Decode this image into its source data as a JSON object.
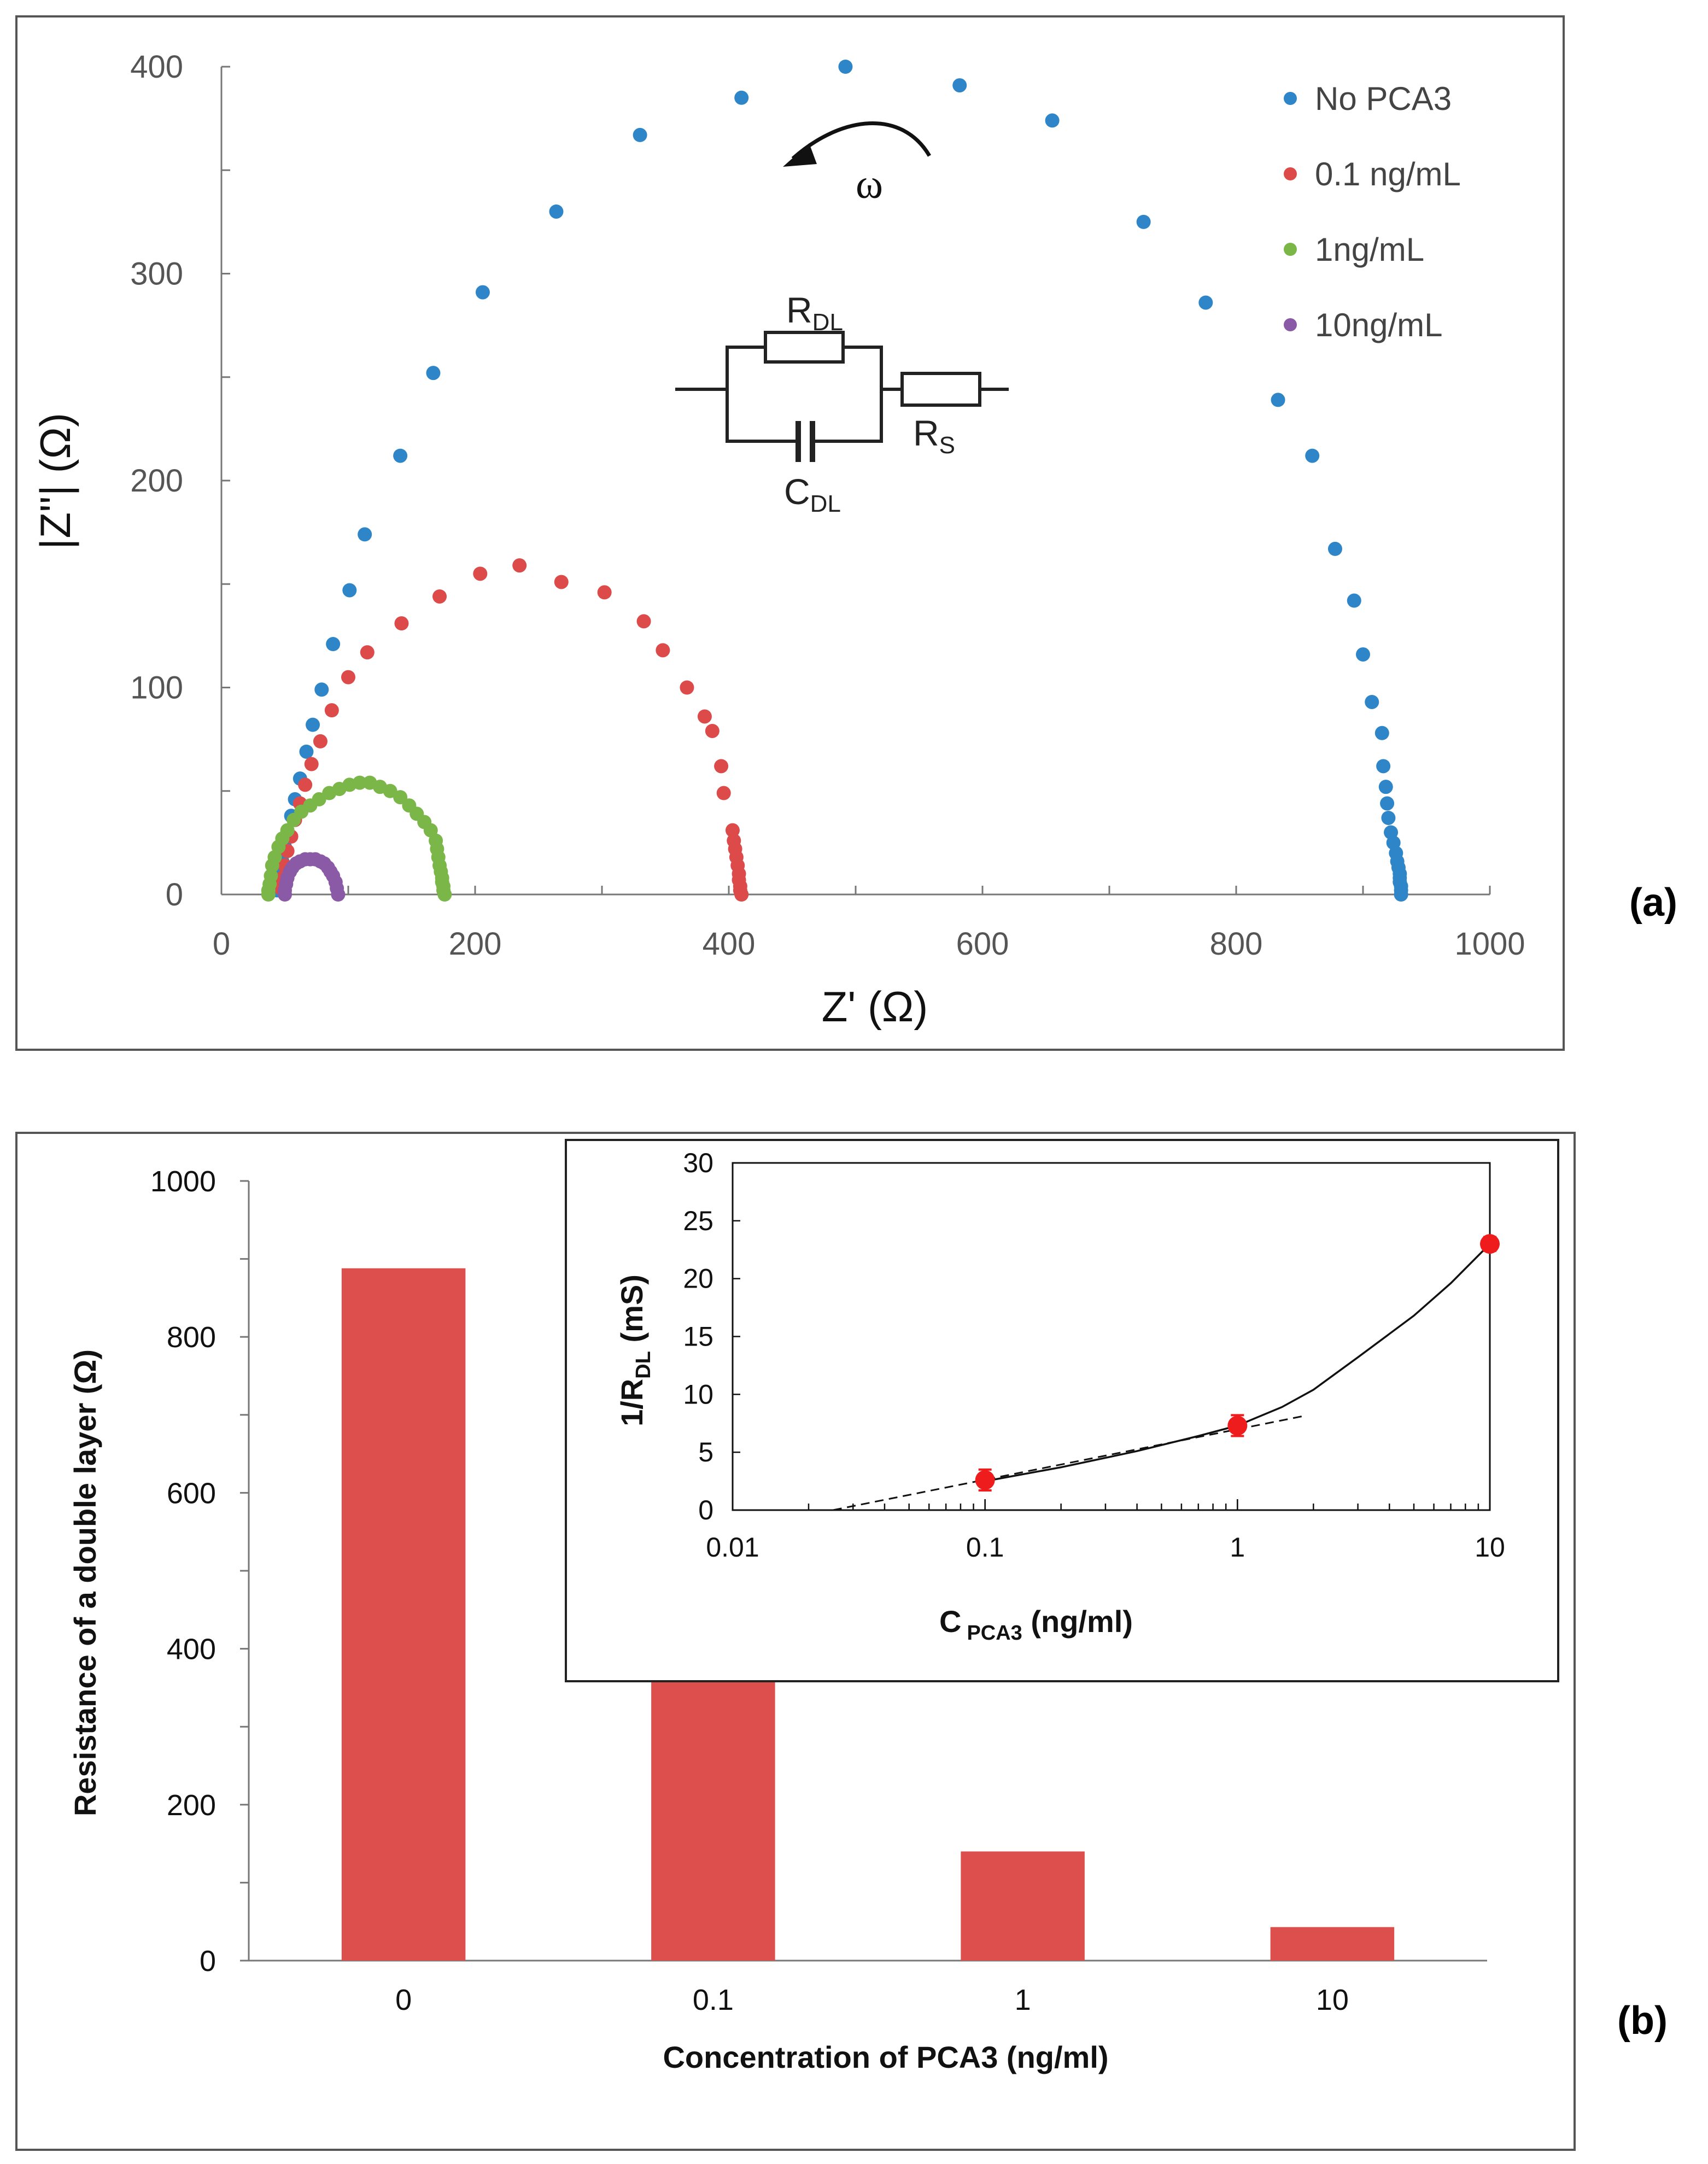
{
  "chart_data": [
    {
      "id": "a",
      "type": "scatter",
      "panel_label": "(a)",
      "xlabel": "Z' (Ω)",
      "ylabel": "|Z''| (Ω)",
      "xlim": [
        0,
        1000
      ],
      "ylim": [
        0,
        400
      ],
      "xticks": [
        "0",
        "200",
        "400",
        "600",
        "800",
        "1000"
      ],
      "yticks": [
        "0",
        "100",
        "200",
        "300",
        "400"
      ],
      "grid": false,
      "legend_position": "top-right",
      "colors": {
        "No PCA3": "#2e86c9",
        "0.1 ng/mL": "#dc4a4a",
        "1ng/mL": "#7ab648",
        "10ng/mL": "#8a5aa7"
      },
      "annotation": "ω",
      "circuit": {
        "r_dl": "R",
        "r_dl_sub": "DL",
        "c_dl": "C",
        "c_dl_sub": "DL",
        "r_s": "R",
        "r_s_sub": "S"
      },
      "series": [
        {
          "name": "No PCA3",
          "color": "#2e86c9",
          "points": [
            [
              930,
              0
            ],
            [
              930,
              2
            ],
            [
              930,
              4
            ],
            [
              929,
              6
            ],
            [
              929,
              8
            ],
            [
              929,
              10
            ],
            [
              928,
              13
            ],
            [
              927,
              16
            ],
            [
              926,
              20
            ],
            [
              924,
              25
            ],
            [
              922,
              30
            ],
            [
              920,
              37
            ],
            [
              919,
              44
            ],
            [
              918,
              52
            ],
            [
              916,
              62
            ],
            [
              915,
              78
            ],
            [
              907,
              93
            ],
            [
              900,
              116
            ],
            [
              893,
              142
            ],
            [
              878,
              167
            ],
            [
              860,
              212
            ],
            [
              833,
              239
            ],
            [
              776,
              286
            ],
            [
              727,
              325
            ],
            [
              655,
              374
            ],
            [
              582,
              391
            ],
            [
              492,
              400
            ],
            [
              410,
              385
            ],
            [
              330,
              367
            ],
            [
              264,
              330
            ],
            [
              206,
              291
            ],
            [
              167,
              252
            ],
            [
              141,
              212
            ],
            [
              113,
              174
            ],
            [
              101,
              147
            ],
            [
              88,
              121
            ],
            [
              79,
              99
            ],
            [
              72,
              82
            ],
            [
              67,
              69
            ],
            [
              62,
              56
            ],
            [
              58,
              46
            ],
            [
              55,
              38
            ],
            [
              52,
              30
            ],
            [
              50,
              23
            ],
            [
              48,
              16
            ],
            [
              46,
              10
            ],
            [
              45,
              5
            ],
            [
              44,
              2
            ]
          ]
        },
        {
          "name": "0.1 ng/mL",
          "color": "#dc4a4a",
          "points": [
            [
              410,
              0
            ],
            [
              409,
              2
            ],
            [
              409,
              4
            ],
            [
              408,
              7
            ],
            [
              408,
              10
            ],
            [
              407,
              14
            ],
            [
              406,
              18
            ],
            [
              405,
              22
            ],
            [
              404,
              26
            ],
            [
              403,
              31
            ],
            [
              396,
              49
            ],
            [
              394,
              62
            ],
            [
              387,
              79
            ],
            [
              381,
              86
            ],
            [
              367,
              100
            ],
            [
              348,
              118
            ],
            [
              333,
              132
            ],
            [
              302,
              146
            ],
            [
              268,
              151
            ],
            [
              235,
              159
            ],
            [
              204,
              155
            ],
            [
              172,
              144
            ],
            [
              142,
              131
            ],
            [
              115,
              117
            ],
            [
              100,
              105
            ],
            [
              87,
              89
            ],
            [
              78,
              74
            ],
            [
              71,
              63
            ],
            [
              66,
              53
            ],
            [
              62,
              44
            ],
            [
              58,
              36
            ],
            [
              55,
              28
            ],
            [
              52,
              21
            ],
            [
              50,
              14
            ],
            [
              48,
              8
            ],
            [
              47,
              3
            ]
          ]
        },
        {
          "name": "1ng/mL",
          "color": "#7ab648",
          "points": [
            [
              176,
              0
            ],
            [
              175,
              2
            ],
            [
              175,
              4
            ],
            [
              174,
              6
            ],
            [
              174,
              8
            ],
            [
              173,
              11
            ],
            [
              172,
              14
            ],
            [
              171,
              18
            ],
            [
              170,
              22
            ],
            [
              169,
              26
            ],
            [
              165,
              31
            ],
            [
              160,
              35
            ],
            [
              154,
              39
            ],
            [
              148,
              43
            ],
            [
              141,
              47
            ],
            [
              133,
              50
            ],
            [
              125,
              52
            ],
            [
              117,
              54
            ],
            [
              109,
              54
            ],
            [
              101,
              53
            ],
            [
              93,
              51
            ],
            [
              85,
              49
            ],
            [
              77,
              46
            ],
            [
              70,
              43
            ],
            [
              63,
              40
            ],
            [
              57,
              36
            ],
            [
              52,
              31
            ],
            [
              48,
              27
            ],
            [
              45,
              23
            ],
            [
              42,
              18
            ],
            [
              40,
              14
            ],
            [
              39,
              9
            ],
            [
              38,
              5
            ],
            [
              37,
              2
            ],
            [
              37,
              0
            ]
          ]
        },
        {
          "name": "10ng/mL",
          "color": "#8a5aa7",
          "points": [
            [
              92,
              0
            ],
            [
              91,
              3
            ],
            [
              90,
              6
            ],
            [
              88,
              9
            ],
            [
              86,
              11
            ],
            [
              84,
              13
            ],
            [
              81,
              15
            ],
            [
              78,
              16
            ],
            [
              74,
              17
            ],
            [
              70,
              17
            ],
            [
              66,
              17
            ],
            [
              62,
              16
            ],
            [
              59,
              15
            ],
            [
              56,
              13
            ],
            [
              54,
              11
            ],
            [
              52,
              8
            ],
            [
              51,
              5
            ],
            [
              50,
              2
            ],
            [
              50,
              0
            ]
          ]
        }
      ]
    },
    {
      "id": "b",
      "type": "bar",
      "panel_label": "(b)",
      "categories": [
        "0",
        "0.1",
        "1",
        "10"
      ],
      "values": [
        888,
        366,
        140,
        43
      ],
      "color": "#dc4f4c",
      "xlabel": "Concentration of PCA3 (ng/ml)",
      "ylabel": "Resistance of a double layer (Ω)",
      "ylim": [
        0,
        1000
      ],
      "yticks": [
        "0",
        "200",
        "400",
        "600",
        "800",
        "1000"
      ],
      "grid": false
    },
    {
      "id": "b-inset",
      "type": "scatter",
      "xscale": "log",
      "xlim": [
        0.01,
        10
      ],
      "ylim": [
        0,
        30
      ],
      "xticks": [
        "0.01",
        "0.1",
        "1",
        "10"
      ],
      "yticks": [
        "0",
        "5",
        "10",
        "15",
        "20",
        "25",
        "30"
      ],
      "xlabel": "C",
      "xlabel_sub": "PCA3",
      "xlabel_suffix": " (ng/ml)",
      "ylabel": "1/R",
      "ylabel_sub": "DL",
      "ylabel_suffix": " (mS)",
      "points": [
        {
          "x": 0.1,
          "y": 2.6,
          "err": 0.9
        },
        {
          "x": 1,
          "y": 7.3,
          "err": 0.9
        },
        {
          "x": 10,
          "y": 23.0,
          "err": 0.6
        }
      ],
      "marker_color": "#ee1c1c",
      "fit_curve": [
        [
          0.1,
          2.5
        ],
        [
          0.2,
          3.7
        ],
        [
          0.4,
          5.1
        ],
        [
          0.7,
          6.4
        ],
        [
          1,
          7.3
        ],
        [
          1.5,
          8.9
        ],
        [
          2,
          10.4
        ],
        [
          3,
          13.2
        ],
        [
          5,
          16.8
        ],
        [
          7,
          19.6
        ],
        [
          10,
          23.0
        ]
      ],
      "log_trend": [
        [
          0.025,
          0
        ],
        [
          1.8,
          8.1
        ]
      ]
    }
  ]
}
